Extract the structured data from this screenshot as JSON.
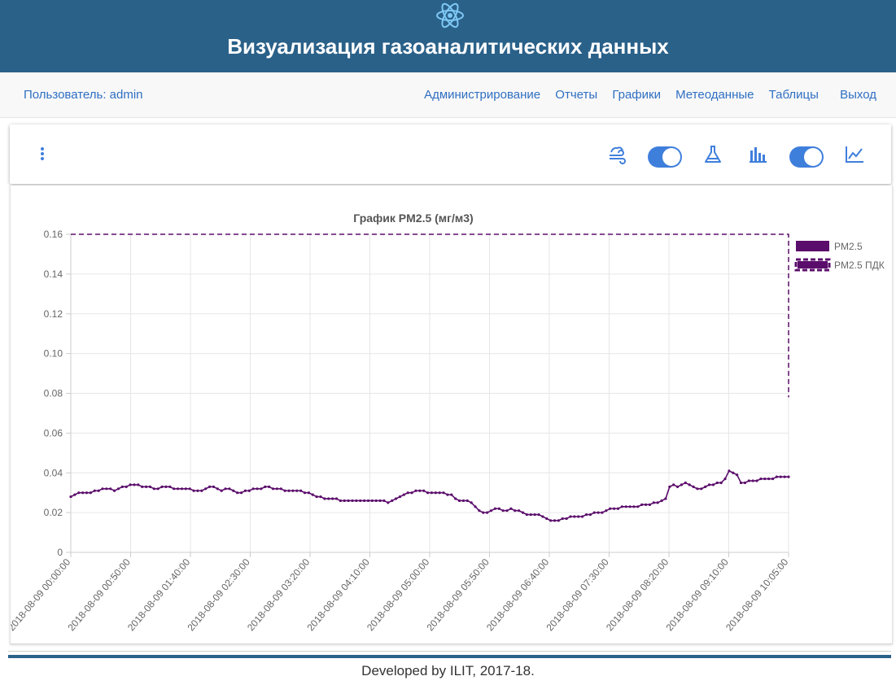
{
  "header": {
    "title": "Визуализация газоаналитических данных",
    "logo_icon": "atom-icon",
    "bg_color": "#2a6189"
  },
  "nav": {
    "user_label": "Пользователь: admin",
    "links": [
      "Администрирование",
      "Отчеты",
      "Графики",
      "Метеоданные",
      "Таблицы",
      "Выход"
    ],
    "link_color": "#2f6fc2"
  },
  "toolbar": {
    "menu_icon": "kebab-menu-icon",
    "icons": [
      "wind-icon",
      "flask-icon",
      "bar-chart-icon",
      "line-chart-icon"
    ],
    "toggles": [
      true,
      true
    ],
    "accent": "#3f7fdc"
  },
  "chart_data": {
    "type": "line",
    "title": "График PM2.5 (мг/м3)",
    "xlabel": "",
    "ylabel": "",
    "ylim": [
      0,
      0.16
    ],
    "yticks": [
      "0",
      "0.02",
      "0.04",
      "0.06",
      "0.08",
      "0.10",
      "0.12",
      "0.14",
      "0.16"
    ],
    "xticks": [
      "2018-08-09 00:00:00",
      "2018-08-09 00:50:00",
      "2018-08-09 01:40:00",
      "2018-08-09 02:30:00",
      "2018-08-09 03:20:00",
      "2018-08-09 04:10:00",
      "2018-08-09 05:00:00",
      "2018-08-09 05:50:00",
      "2018-08-09 06:40:00",
      "2018-08-09 07:30:00",
      "2018-08-09 08:20:00",
      "2018-08-09 09:10:00",
      "2018-08-09 10:05:00"
    ],
    "grid": true,
    "legend_position": "right",
    "series": [
      {
        "name": "PM2.5",
        "color": "#5b0d6b",
        "values": [
          0.028,
          0.029,
          0.03,
          0.03,
          0.03,
          0.03,
          0.031,
          0.031,
          0.032,
          0.032,
          0.032,
          0.031,
          0.032,
          0.033,
          0.033,
          0.034,
          0.034,
          0.034,
          0.033,
          0.033,
          0.033,
          0.032,
          0.032,
          0.033,
          0.033,
          0.033,
          0.032,
          0.032,
          0.032,
          0.032,
          0.032,
          0.031,
          0.031,
          0.031,
          0.032,
          0.033,
          0.033,
          0.032,
          0.031,
          0.032,
          0.032,
          0.031,
          0.03,
          0.03,
          0.031,
          0.031,
          0.032,
          0.032,
          0.032,
          0.033,
          0.033,
          0.032,
          0.032,
          0.032,
          0.031,
          0.031,
          0.031,
          0.031,
          0.031,
          0.03,
          0.03,
          0.029,
          0.028,
          0.028,
          0.027,
          0.027,
          0.027,
          0.027,
          0.026,
          0.026,
          0.026,
          0.026,
          0.026,
          0.026,
          0.026,
          0.026,
          0.026,
          0.026,
          0.026,
          0.026,
          0.025,
          0.026,
          0.027,
          0.028,
          0.029,
          0.03,
          0.03,
          0.031,
          0.031,
          0.031,
          0.03,
          0.03,
          0.03,
          0.03,
          0.03,
          0.029,
          0.029,
          0.027,
          0.026,
          0.026,
          0.026,
          0.025,
          0.023,
          0.021,
          0.02,
          0.02,
          0.021,
          0.022,
          0.022,
          0.021,
          0.021,
          0.022,
          0.021,
          0.021,
          0.02,
          0.019,
          0.019,
          0.019,
          0.019,
          0.018,
          0.017,
          0.016,
          0.016,
          0.016,
          0.017,
          0.017,
          0.018,
          0.018,
          0.018,
          0.018,
          0.019,
          0.019,
          0.02,
          0.02,
          0.02,
          0.021,
          0.022,
          0.022,
          0.022,
          0.023,
          0.023,
          0.023,
          0.023,
          0.023,
          0.024,
          0.024,
          0.024,
          0.025,
          0.025,
          0.026,
          0.027,
          0.033,
          0.034,
          0.033,
          0.034,
          0.035,
          0.034,
          0.033,
          0.032,
          0.032,
          0.033,
          0.034,
          0.034,
          0.035,
          0.035,
          0.037,
          0.041,
          0.04,
          0.039,
          0.035,
          0.035,
          0.036,
          0.036,
          0.036,
          0.037,
          0.037,
          0.037,
          0.037,
          0.038,
          0.038,
          0.038,
          0.038
        ]
      },
      {
        "name": "PM2.5 ПДК",
        "color": "#5b0d6b",
        "constant": 0.16
      }
    ]
  },
  "footer": {
    "text": "Developed by ILIT, 2017-18."
  }
}
